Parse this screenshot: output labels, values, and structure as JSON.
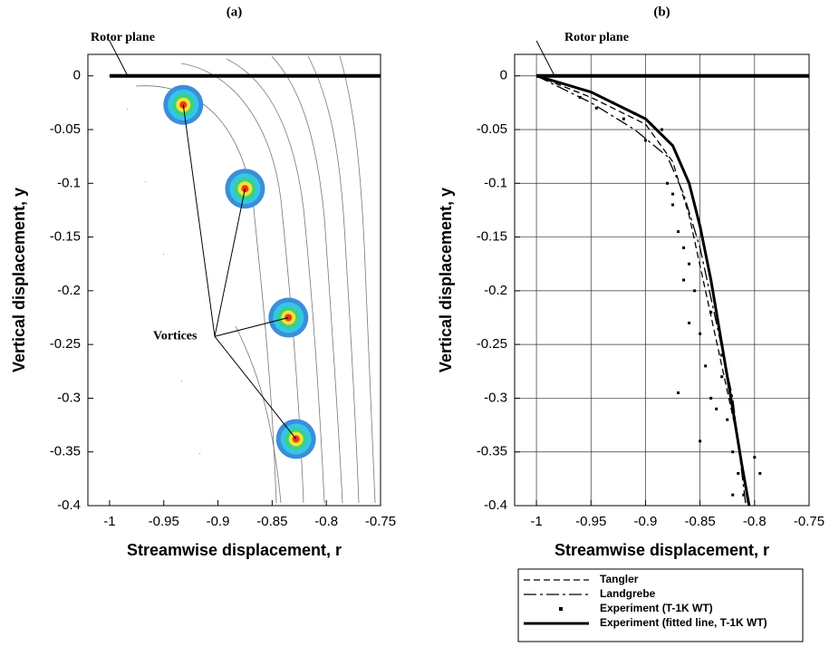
{
  "chart_data": [
    {
      "type": "vector",
      "title": "(a)",
      "xlabel": "Streamwise displacement, r",
      "ylabel": "Vertical displacement, y",
      "xlim": [
        -1.02,
        -0.75
      ],
      "ylim": [
        -0.4,
        0.02
      ],
      "xticks": [
        -1,
        -0.95,
        -0.9,
        -0.85,
        -0.8,
        -0.75
      ],
      "yticks": [
        0,
        -0.05,
        -0.1,
        -0.15,
        -0.2,
        -0.25,
        -0.3,
        -0.35,
        -0.4
      ],
      "rotor_plane": {
        "x": [
          -1,
          -0.75
        ],
        "y": [
          0,
          0
        ],
        "color": "#000000"
      },
      "vortices": {
        "x": [
          -0.932,
          -0.875,
          -0.835,
          -0.828
        ],
        "y": [
          -0.027,
          -0.105,
          -0.225,
          -0.338
        ]
      },
      "annotations": [
        "Rotor plane",
        "Vortices"
      ]
    },
    {
      "type": "line",
      "title": "(b)",
      "xlabel": "Streamwise displacement, r",
      "ylabel": "Vertical displacement, y",
      "xlim": [
        -1.02,
        -0.75
      ],
      "ylim": [
        -0.4,
        0.02
      ],
      "xticks": [
        -1,
        -0.95,
        -0.9,
        -0.85,
        -0.8,
        -0.75
      ],
      "yticks": [
        0,
        -0.05,
        -0.1,
        -0.15,
        -0.2,
        -0.25,
        -0.3,
        -0.35,
        -0.4
      ],
      "grid": true,
      "legend": "below",
      "rotor_plane": {
        "x": [
          -1,
          -0.75
        ],
        "y": [
          0,
          0
        ],
        "color": "#000000"
      },
      "annotations": [
        "Rotor plane"
      ],
      "series": [
        {
          "name": "Tangler",
          "style": "dashed",
          "color": "#000000",
          "x": [
            -1,
            -0.95,
            -0.9,
            -0.875,
            -0.86,
            -0.845,
            -0.83,
            -0.815,
            -0.806
          ],
          "y": [
            0,
            -0.02,
            -0.045,
            -0.08,
            -0.13,
            -0.2,
            -0.27,
            -0.34,
            -0.4
          ]
        },
        {
          "name": "Landgrebe",
          "style": "dashdot",
          "color": "#000000",
          "x": [
            -1,
            -0.95,
            -0.91,
            -0.88,
            -0.865,
            -0.85,
            -0.835,
            -0.82,
            -0.808
          ],
          "y": [
            0,
            -0.025,
            -0.05,
            -0.075,
            -0.11,
            -0.16,
            -0.23,
            -0.3,
            -0.4
          ]
        },
        {
          "name": "Experiment (T-1K WT)",
          "style": "points",
          "color": "#000000",
          "x": [
            -0.96,
            -0.945,
            -0.93,
            -0.92,
            -0.91,
            -0.9,
            -0.895,
            -0.885,
            -0.88,
            -0.875,
            -0.87,
            -0.865,
            -0.86,
            -0.855,
            -0.86,
            -0.85,
            -0.845,
            -0.87,
            -0.84,
            -0.835,
            -0.83,
            -0.825,
            -0.82,
            -0.815,
            -0.81,
            -0.85,
            -0.865,
            -0.84,
            -0.83,
            -0.8,
            -0.795,
            -0.82,
            -0.875
          ],
          "y": [
            -0.02,
            -0.03,
            -0.025,
            -0.04,
            -0.035,
            -0.06,
            -0.045,
            -0.05,
            -0.1,
            -0.11,
            -0.145,
            -0.16,
            -0.175,
            -0.2,
            -0.23,
            -0.24,
            -0.27,
            -0.295,
            -0.3,
            -0.31,
            -0.28,
            -0.32,
            -0.35,
            -0.37,
            -0.39,
            -0.34,
            -0.19,
            -0.22,
            -0.26,
            -0.355,
            -0.37,
            -0.39,
            -0.12
          ]
        },
        {
          "name": "Experiment (fitted line, T-1K WT)",
          "style": "solid",
          "color": "#000000",
          "x": [
            -1,
            -0.95,
            -0.9,
            -0.875,
            -0.86,
            -0.85,
            -0.84,
            -0.83,
            -0.82,
            -0.812,
            -0.805
          ],
          "y": [
            0,
            -0.015,
            -0.04,
            -0.065,
            -0.1,
            -0.14,
            -0.19,
            -0.25,
            -0.31,
            -0.36,
            -0.4
          ]
        }
      ]
    }
  ]
}
